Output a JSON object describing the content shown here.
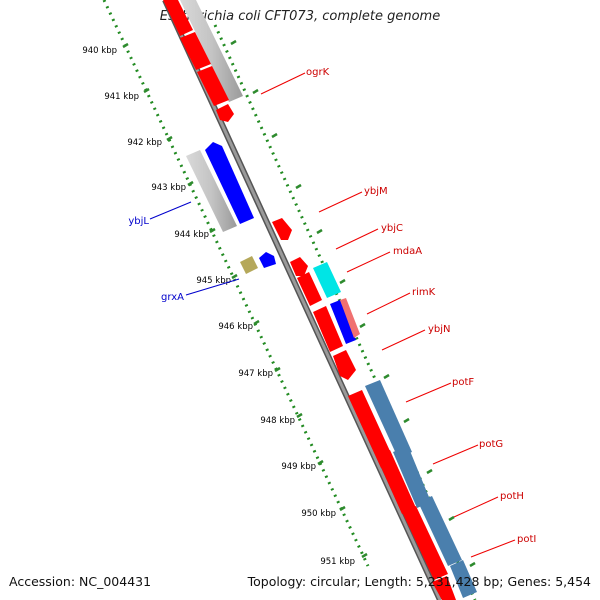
{
  "title": "Escherichia coli CFT073, complete genome",
  "footer": {
    "accession": "Accession: NC_004431",
    "topology": "Topology: circular;",
    "length": "Length: 5,231,428 bp;",
    "genes": "Genes: 5,454"
  },
  "colors": {
    "forward_gene": "#ff0000",
    "reverse_gene": "#0000ff",
    "other_gene": "#c0c0c0",
    "cyan_gene": "#00e5e5",
    "steel_gene": "#4a7fad",
    "olive_gene": "#b5a85a",
    "backbone": "#808080",
    "tick": "#228B22",
    "forward_label": "#cc0000",
    "reverse_label": "#0000cc"
  },
  "ruler_labels": [
    "940 kbp",
    "941 kbp",
    "942 kbp",
    "943 kbp",
    "944 kbp",
    "945 kbp",
    "946 kbp",
    "947 kbp",
    "948 kbp",
    "949 kbp",
    "950 kbp",
    "951 kbp"
  ],
  "gene_labels": [
    {
      "text": "ogrK",
      "strand": "forward"
    },
    {
      "text": "ybjL",
      "strand": "reverse"
    },
    {
      "text": "ybjM",
      "strand": "forward"
    },
    {
      "text": "ybjC",
      "strand": "forward"
    },
    {
      "text": "mdaA",
      "strand": "forward"
    },
    {
      "text": "grxA",
      "strand": "reverse"
    },
    {
      "text": "rimK",
      "strand": "forward"
    },
    {
      "text": "ybjN",
      "strand": "forward"
    },
    {
      "text": "potF",
      "strand": "forward"
    },
    {
      "text": "potG",
      "strand": "forward"
    },
    {
      "text": "potH",
      "strand": "forward"
    },
    {
      "text": "potI",
      "strand": "forward"
    }
  ]
}
